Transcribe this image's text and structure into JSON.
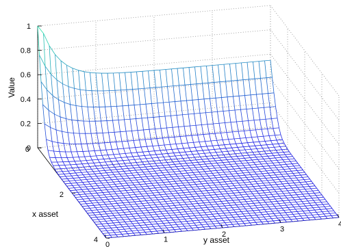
{
  "chart_data": {
    "type": "surface",
    "title": "",
    "xlabel": "y asset",
    "ylabel": "x asset",
    "zlabel": "Value",
    "xlim": [
      0,
      4
    ],
    "ylim": [
      0,
      4
    ],
    "zlim": [
      0,
      1
    ],
    "x_ticks": [
      "0",
      "1",
      "2",
      "3",
      "4"
    ],
    "y_ticks": [
      "0",
      "2",
      "4"
    ],
    "z_ticks": [
      "0",
      "0.2",
      "0.4",
      "0.6",
      "0.8",
      "1"
    ],
    "grid": true,
    "colormap": [
      "#1f1fe6",
      "#26e6a6"
    ],
    "mesh": {
      "x_grid": [
        0,
        0.1,
        0.2,
        0.3,
        0.4,
        0.5,
        0.6,
        0.7,
        0.8,
        0.9,
        1.0,
        1.1,
        1.2,
        1.3,
        1.4,
        1.5,
        1.6,
        1.7,
        1.8,
        1.9,
        2.0,
        2.1,
        2.2,
        2.3,
        2.4,
        2.5,
        2.6,
        2.7,
        2.8,
        2.9,
        3.0,
        3.1,
        3.2,
        3.3,
        3.4,
        3.5,
        3.6,
        3.7,
        3.8,
        3.9,
        4.0
      ],
      "y_grid": [
        0,
        0.1,
        0.2,
        0.3,
        0.4,
        0.5,
        0.6,
        0.7,
        0.8,
        0.9,
        1.0,
        1.1,
        1.2,
        1.3,
        1.4,
        1.5,
        1.6,
        1.7,
        1.8,
        1.9,
        2.0,
        2.1,
        2.2,
        2.3,
        2.4,
        2.5,
        2.6,
        2.7,
        2.8,
        2.9,
        3.0,
        3.1,
        3.2,
        3.3,
        3.4,
        3.5,
        3.6,
        3.7,
        3.8,
        3.9,
        4.0
      ],
      "x_asset_profile": [
        1.0,
        1.0,
        1.0,
        1.0,
        1.0,
        1.0,
        1.0,
        1.0,
        1.0,
        1.0,
        1.0,
        1.0,
        1.0,
        1.0,
        1.0,
        1.0,
        1.0,
        1.0,
        1.0,
        1.0,
        1.0,
        1.0,
        1.0,
        1.0,
        1.0,
        1.0,
        1.0,
        1.0,
        1.0,
        1.0,
        1.0,
        1.0,
        1.0,
        1.0,
        1.0,
        1.0,
        1.0,
        1.0,
        1.0,
        1.0,
        1.0
      ],
      "y_asset_profile": [
        1.0,
        0.78,
        0.58,
        0.41,
        0.27,
        0.16,
        0.09,
        0.05,
        0.03,
        0.02,
        0.01,
        0.005,
        0.003,
        0.002,
        0.001,
        0.001,
        0.0,
        0.0,
        0.0,
        0.0,
        0.0,
        0.0,
        0.0,
        0.0,
        0.0,
        0.0,
        0.0,
        0.0,
        0.0,
        0.0,
        0.0,
        0.0,
        0.0,
        0.0,
        0.0,
        0.0,
        0.0,
        0.0,
        0.0,
        0.0,
        0.0
      ],
      "x_falloff": [
        1.0,
        1.0,
        1.0,
        1.0,
        1.0,
        1.0,
        1.0,
        1.0,
        1.0,
        1.0,
        1.0,
        1.0,
        1.0,
        1.0,
        1.0,
        1.0,
        1.0,
        1.0,
        1.0,
        1.0,
        1.0,
        1.0,
        1.0,
        1.0,
        1.0,
        1.0,
        1.0,
        1.0,
        1.0,
        1.0,
        1.0,
        1.0,
        1.0,
        1.0,
        1.0,
        1.0,
        1.0,
        1.0,
        1.0,
        1.0,
        1.0
      ]
    }
  }
}
